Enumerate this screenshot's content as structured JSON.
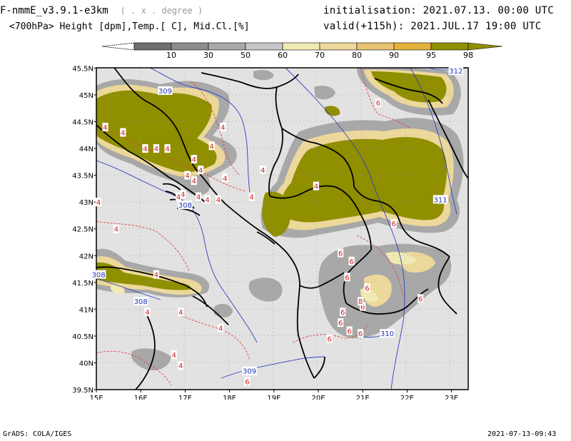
{
  "header": {
    "model": "F-nmmE_v3.9.1-e3km",
    "grid_note": "( . x . degree )",
    "subtitle": "<700hPa> Height [dpm],Temp.[ C], Mid.Cl.[%]",
    "init_label": "initialisation:",
    "init_value": "2021.07.13.  00:00 UTC",
    "valid_label": "valid(+115h):",
    "valid_value": "2021.JUL.17  19:00 UTC"
  },
  "colorbar": {
    "labels": [
      "10",
      "30",
      "50",
      "60",
      "70",
      "80",
      "90",
      "95",
      "98"
    ],
    "colors": [
      "#6e6e6e",
      "#8c8c8c",
      "#a9a9a9",
      "#c6c6c6",
      "#f0eab2",
      "#ecd89a",
      "#e8c474",
      "#e5b33c",
      "#8f8f00"
    ]
  },
  "map": {
    "lat_labels": [
      "45.5N",
      "45N",
      "44.5N",
      "44N",
      "43.5N",
      "43N",
      "42.5N",
      "42N",
      "41.5N",
      "41N",
      "40.5N",
      "40N",
      "39.5N"
    ],
    "lon_labels": [
      "15E",
      "16E",
      "17E",
      "18E",
      "19E",
      "20E",
      "21E",
      "22E",
      "23E"
    ],
    "height_labels": [
      {
        "text": "309",
        "lon": 16.55,
        "lat": 45.08
      },
      {
        "text": "308",
        "lon": 17.0,
        "lat": 42.95
      },
      {
        "text": "308",
        "lon": 15.05,
        "lat": 41.65
      },
      {
        "text": "308",
        "lon": 16.0,
        "lat": 41.15
      },
      {
        "text": "311",
        "lon": 22.75,
        "lat": 43.05
      },
      {
        "text": "310",
        "lon": 21.55,
        "lat": 40.55
      },
      {
        "text": "309",
        "lon": 18.45,
        "lat": 39.85
      },
      {
        "text": "312",
        "lon": 23.1,
        "lat": 45.45
      }
    ],
    "temp_labels": [
      {
        "text": "4",
        "lon": 15.2,
        "lat": 44.4
      },
      {
        "text": "4",
        "lon": 15.6,
        "lat": 44.3
      },
      {
        "text": "4",
        "lon": 16.1,
        "lat": 44.0
      },
      {
        "text": "4",
        "lon": 16.35,
        "lat": 44.0
      },
      {
        "text": "4",
        "lon": 16.6,
        "lat": 44.0
      },
      {
        "text": "4",
        "lon": 17.6,
        "lat": 44.05
      },
      {
        "text": "4",
        "lon": 17.85,
        "lat": 44.4
      },
      {
        "text": "4",
        "lon": 17.2,
        "lat": 43.8
      },
      {
        "text": "4",
        "lon": 17.35,
        "lat": 43.6
      },
      {
        "text": "4",
        "lon": 17.05,
        "lat": 43.5
      },
      {
        "text": "4",
        "lon": 17.2,
        "lat": 43.4
      },
      {
        "text": "4",
        "lon": 17.9,
        "lat": 43.45
      },
      {
        "text": "4",
        "lon": 18.75,
        "lat": 43.6
      },
      {
        "text": "4",
        "lon": 18.5,
        "lat": 43.1
      },
      {
        "text": "4",
        "lon": 17.75,
        "lat": 43.05
      },
      {
        "text": "4",
        "lon": 17.5,
        "lat": 43.05
      },
      {
        "text": "4",
        "lon": 17.3,
        "lat": 43.1
      },
      {
        "text": "4",
        "lon": 16.95,
        "lat": 43.15
      },
      {
        "text": "4",
        "lon": 16.85,
        "lat": 43.1
      },
      {
        "text": "4",
        "lon": 15.45,
        "lat": 42.5
      },
      {
        "text": "4",
        "lon": 15.05,
        "lat": 43.0
      },
      {
        "text": "4",
        "lon": 16.35,
        "lat": 41.65
      },
      {
        "text": "4",
        "lon": 16.15,
        "lat": 40.95
      },
      {
        "text": "4",
        "lon": 16.9,
        "lat": 40.95
      },
      {
        "text": "4",
        "lon": 17.8,
        "lat": 40.65
      },
      {
        "text": "4",
        "lon": 16.75,
        "lat": 40.15
      },
      {
        "text": "4",
        "lon": 16.9,
        "lat": 39.95
      },
      {
        "text": "4",
        "lon": 19.95,
        "lat": 43.3
      },
      {
        "text": "6",
        "lon": 21.35,
        "lat": 44.85
      },
      {
        "text": "6",
        "lon": 21.7,
        "lat": 42.6
      },
      {
        "text": "6",
        "lon": 20.5,
        "lat": 42.05
      },
      {
        "text": "6",
        "lon": 20.75,
        "lat": 41.9
      },
      {
        "text": "6",
        "lon": 20.65,
        "lat": 41.6
      },
      {
        "text": "6",
        "lon": 21.1,
        "lat": 41.4
      },
      {
        "text": "6",
        "lon": 22.3,
        "lat": 41.2
      },
      {
        "text": "6",
        "lon": 21.0,
        "lat": 41.05
      },
      {
        "text": "6",
        "lon": 20.55,
        "lat": 40.95
      },
      {
        "text": "6",
        "lon": 20.5,
        "lat": 40.75
      },
      {
        "text": "6",
        "lon": 20.7,
        "lat": 40.6
      },
      {
        "text": "6",
        "lon": 20.95,
        "lat": 40.55
      },
      {
        "text": "6",
        "lon": 20.25,
        "lat": 40.45
      },
      {
        "text": "6",
        "lon": 18.4,
        "lat": 39.65
      },
      {
        "text": "8",
        "lon": 20.95,
        "lat": 41.15
      }
    ]
  },
  "footer": {
    "left": "GrADS: COLA/IGES",
    "right": "2021-07-13-09:43"
  }
}
